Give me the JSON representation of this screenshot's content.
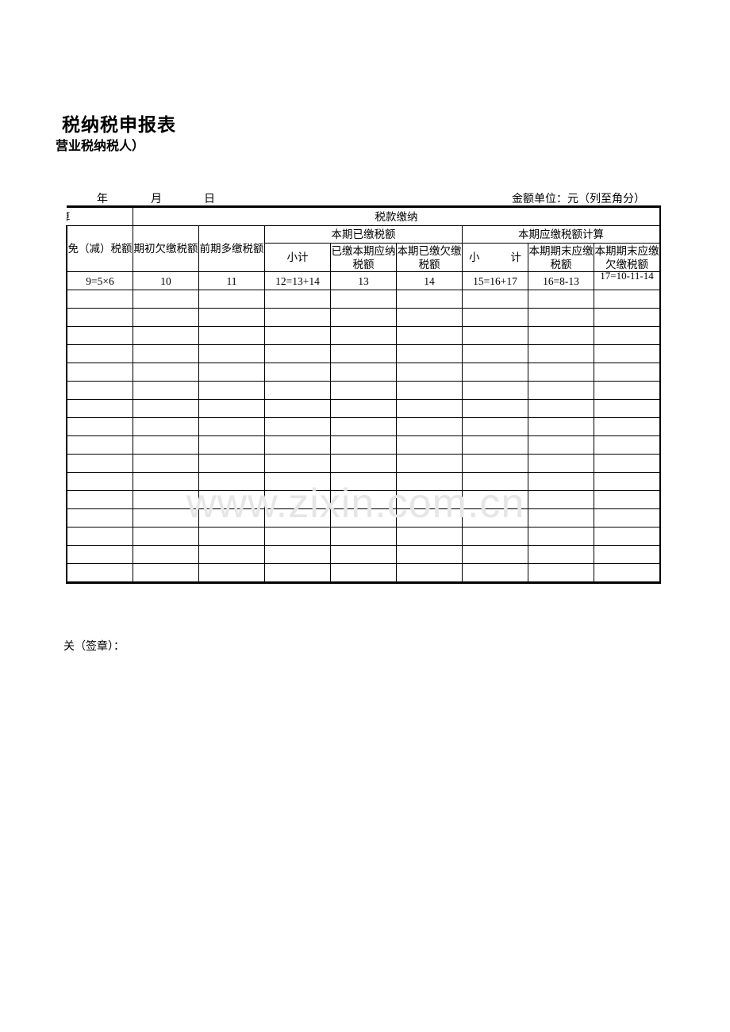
{
  "header": {
    "title": "税纳税申报表",
    "subtitle": "营业税纳税人）",
    "date": {
      "year": "年",
      "month": "月",
      "day": "日"
    },
    "unit": "金额单位：元（列至角分）"
  },
  "table": {
    "row1": {
      "left": "算",
      "group": "税款缴纳"
    },
    "row2": {
      "col9": "免（减）税额",
      "col10": "期初欠缴税额",
      "col11": "前期多缴税额",
      "paid_group": "本期已缴税额",
      "due_group": "本期应缴税额计算"
    },
    "row3": {
      "c12": "小计",
      "c13": "已缴本期应纳税额",
      "c14": "本期已缴欠缴税额",
      "c15a": "小",
      "c15b": "计",
      "c16": "本期期末应缴税额",
      "c17": "本期期末应缴欠缴税额"
    },
    "formulas": [
      "9=5×6",
      "10",
      "11",
      "12=13+14",
      "13",
      "14",
      "15=16+17",
      "16=8-13",
      "17=10-11-14"
    ],
    "empty_rows": 16
  },
  "watermark": "www.zixin.com.cn",
  "footer": {
    "seal": "关（签章）："
  }
}
